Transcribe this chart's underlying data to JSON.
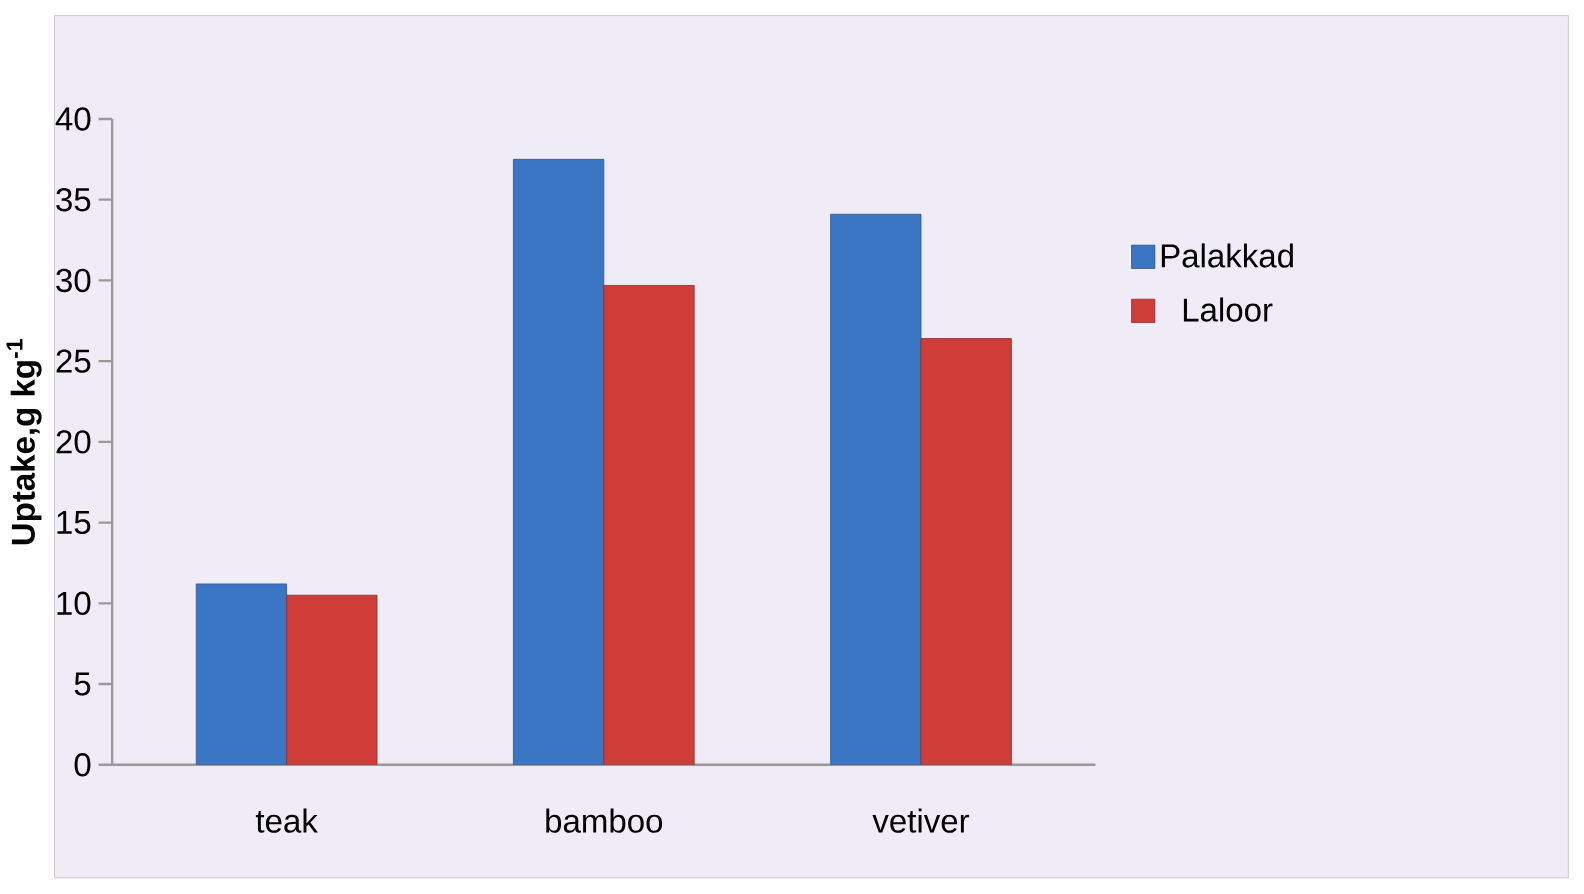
{
  "chart_data": {
    "type": "bar",
    "ylabel": "**Uptake,g kg$^{-1}$**",
    "categories": [
      "teak",
      "bamboo",
      "vetiver"
    ],
    "series": [
      {
        "name": "Palakkad",
        "color": "#3a76c4",
        "values": [
          11.2,
          37.5,
          34.1
        ]
      },
      {
        "name": "Laloor",
        "color": "#d03c38",
        "values": [
          10.5,
          29.7,
          26.4
        ]
      }
    ],
    "ylim": [
      0,
      40
    ],
    "yticks": [
      0,
      5,
      10,
      15,
      20,
      25,
      30,
      35,
      40
    ],
    "grid": false,
    "legend": "right"
  }
}
